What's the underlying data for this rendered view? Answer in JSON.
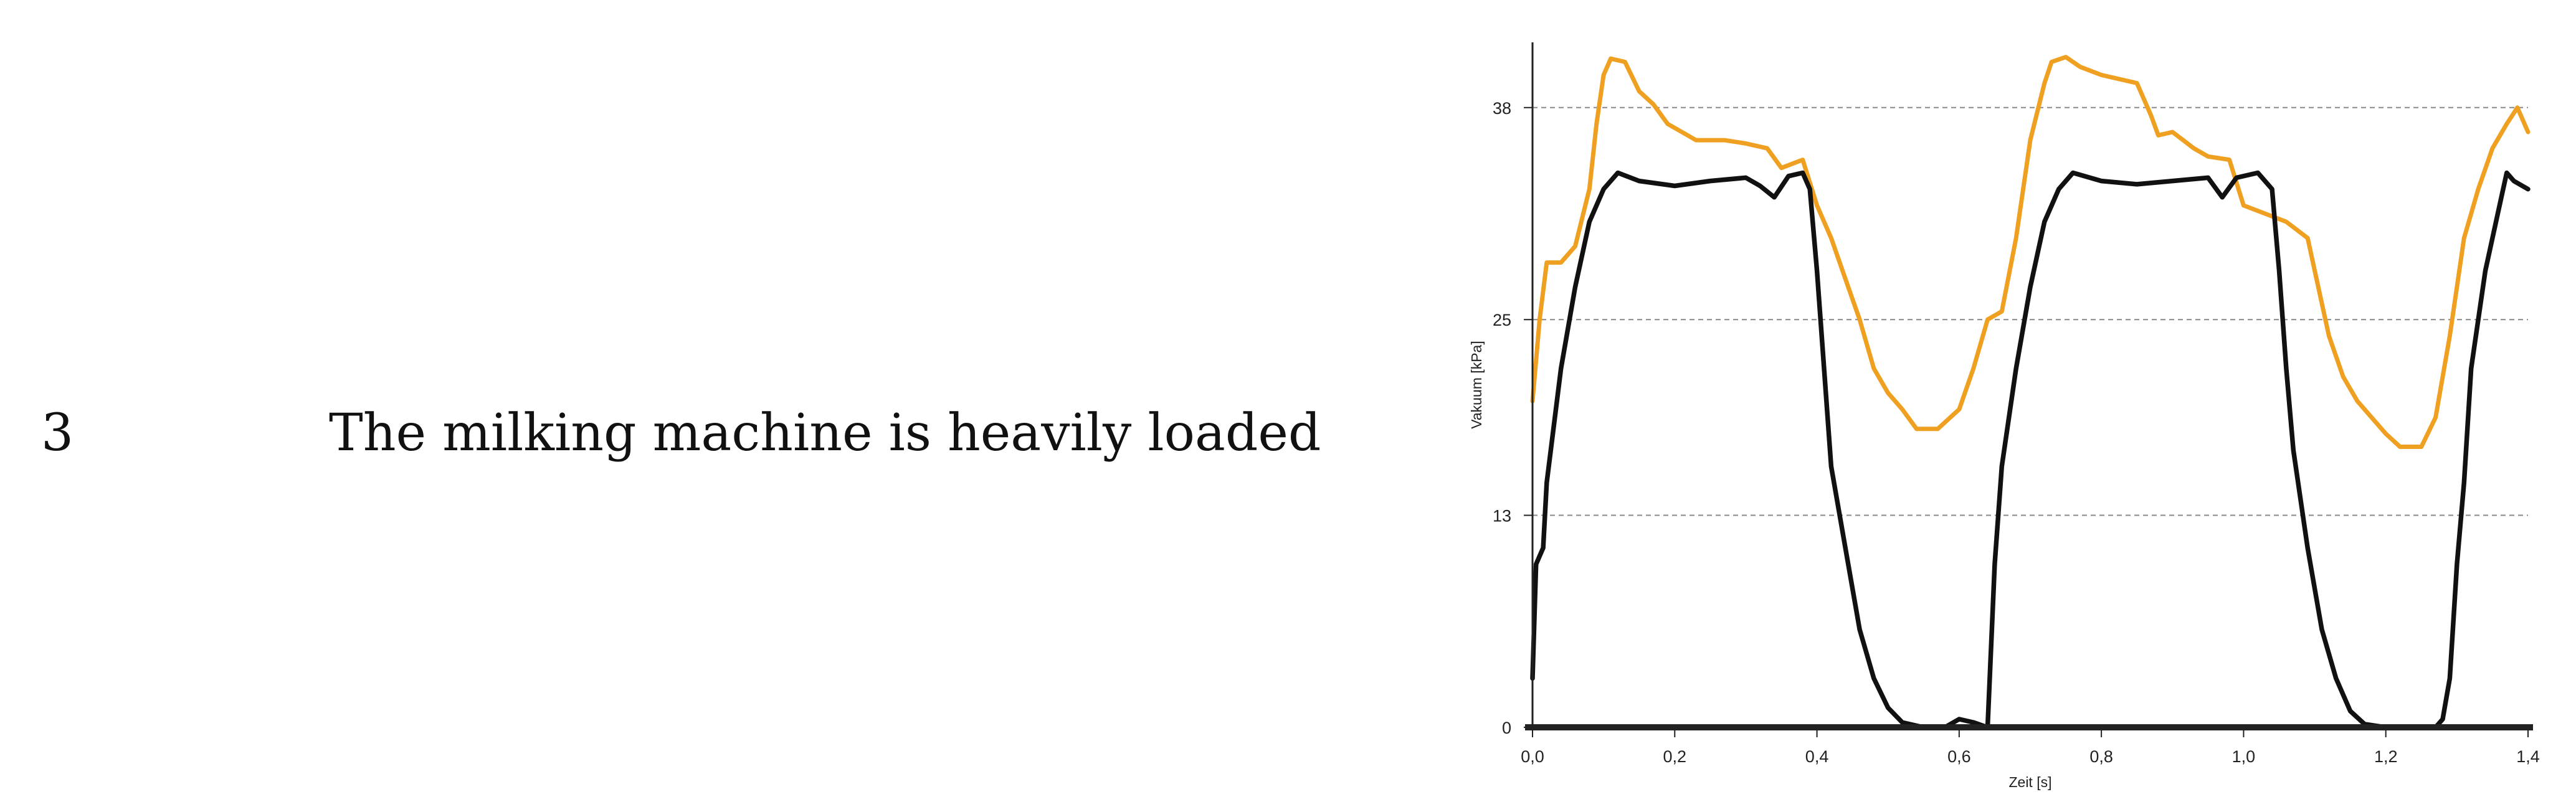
{
  "row": {
    "number": "3",
    "caption": "The milking machine is heavily loaded"
  },
  "colors": {
    "series_orange": "#f0a020",
    "series_black": "#111111",
    "grid": "#888888",
    "axis": "#222222"
  },
  "chart_data": {
    "type": "line",
    "xlabel": "Zeit [s]",
    "ylabel": "Vakuum [kPa]",
    "xlim": [
      0,
      1.4
    ],
    "ylim": [
      0,
      42
    ],
    "xticks": [
      0,
      0.2,
      0.4,
      0.6,
      0.8,
      1.0,
      1.2,
      1.4
    ],
    "xtick_labels": [
      "0,0",
      "0,2",
      "0,4",
      "0,6",
      "0,8",
      "1,0",
      "1,2",
      "1,4"
    ],
    "yticks": [
      0,
      13,
      25,
      38
    ],
    "ytick_labels": [
      "0",
      "13",
      "25",
      "38"
    ],
    "grid": "horizontal dashed",
    "series": [
      {
        "color": "#f0a020",
        "points": [
          [
            0.0,
            20
          ],
          [
            0.01,
            25
          ],
          [
            0.02,
            28.5
          ],
          [
            0.04,
            28.5
          ],
          [
            0.06,
            29.5
          ],
          [
            0.08,
            33
          ],
          [
            0.09,
            37
          ],
          [
            0.1,
            40
          ],
          [
            0.11,
            41
          ],
          [
            0.13,
            40.8
          ],
          [
            0.15,
            39
          ],
          [
            0.17,
            38.2
          ],
          [
            0.19,
            37
          ],
          [
            0.21,
            36.5
          ],
          [
            0.23,
            36
          ],
          [
            0.27,
            36
          ],
          [
            0.3,
            35.8
          ],
          [
            0.33,
            35.5
          ],
          [
            0.35,
            34.3
          ],
          [
            0.38,
            34.8
          ],
          [
            0.4,
            32
          ],
          [
            0.42,
            30
          ],
          [
            0.44,
            27.5
          ],
          [
            0.46,
            25
          ],
          [
            0.48,
            22
          ],
          [
            0.5,
            20.5
          ],
          [
            0.52,
            19.5
          ],
          [
            0.54,
            18.3
          ],
          [
            0.57,
            18.3
          ],
          [
            0.6,
            19.5
          ],
          [
            0.62,
            22
          ],
          [
            0.64,
            25
          ],
          [
            0.66,
            25.5
          ],
          [
            0.68,
            30
          ],
          [
            0.7,
            36
          ],
          [
            0.72,
            39.5
          ],
          [
            0.73,
            40.8
          ],
          [
            0.75,
            41.1
          ],
          [
            0.77,
            40.5
          ],
          [
            0.8,
            40
          ],
          [
            0.85,
            39.5
          ],
          [
            0.87,
            37.5
          ],
          [
            0.88,
            36.3
          ],
          [
            0.9,
            36.5
          ],
          [
            0.93,
            35.5
          ],
          [
            0.95,
            35
          ],
          [
            0.98,
            34.8
          ],
          [
            1.0,
            32
          ],
          [
            1.03,
            31.5
          ],
          [
            1.06,
            31
          ],
          [
            1.09,
            30
          ],
          [
            1.1,
            28
          ],
          [
            1.12,
            24
          ],
          [
            1.14,
            21.5
          ],
          [
            1.16,
            20
          ],
          [
            1.18,
            19
          ],
          [
            1.2,
            18
          ],
          [
            1.22,
            17.2
          ],
          [
            1.25,
            17.2
          ],
          [
            1.27,
            19
          ],
          [
            1.29,
            24
          ],
          [
            1.31,
            30
          ],
          [
            1.33,
            33
          ],
          [
            1.35,
            35.5
          ],
          [
            1.37,
            37
          ],
          [
            1.385,
            38
          ],
          [
            1.4,
            36.5
          ]
        ]
      },
      {
        "color": "#111111",
        "points": [
          [
            0.0,
            3
          ],
          [
            0.005,
            10
          ],
          [
            0.015,
            11
          ],
          [
            0.02,
            15
          ],
          [
            0.04,
            22
          ],
          [
            0.06,
            27
          ],
          [
            0.08,
            31
          ],
          [
            0.1,
            33
          ],
          [
            0.12,
            34
          ],
          [
            0.15,
            33.5
          ],
          [
            0.2,
            33.2
          ],
          [
            0.25,
            33.5
          ],
          [
            0.3,
            33.7
          ],
          [
            0.32,
            33.2
          ],
          [
            0.34,
            32.5
          ],
          [
            0.36,
            33.8
          ],
          [
            0.38,
            34
          ],
          [
            0.39,
            33
          ],
          [
            0.4,
            28
          ],
          [
            0.41,
            22
          ],
          [
            0.42,
            16
          ],
          [
            0.44,
            11
          ],
          [
            0.46,
            6
          ],
          [
            0.48,
            3
          ],
          [
            0.5,
            1.2
          ],
          [
            0.52,
            0.3
          ],
          [
            0.55,
            0
          ],
          [
            0.58,
            0
          ],
          [
            0.6,
            0.5
          ],
          [
            0.62,
            0.3
          ],
          [
            0.64,
            0
          ],
          [
            0.645,
            5
          ],
          [
            0.65,
            10
          ],
          [
            0.66,
            16
          ],
          [
            0.68,
            22
          ],
          [
            0.7,
            27
          ],
          [
            0.72,
            31
          ],
          [
            0.74,
            33
          ],
          [
            0.76,
            34
          ],
          [
            0.8,
            33.5
          ],
          [
            0.85,
            33.3
          ],
          [
            0.9,
            33.5
          ],
          [
            0.95,
            33.7
          ],
          [
            0.97,
            32.5
          ],
          [
            0.99,
            33.7
          ],
          [
            1.02,
            34
          ],
          [
            1.04,
            33
          ],
          [
            1.05,
            28
          ],
          [
            1.06,
            22
          ],
          [
            1.07,
            17
          ],
          [
            1.09,
            11
          ],
          [
            1.11,
            6
          ],
          [
            1.13,
            3
          ],
          [
            1.15,
            1
          ],
          [
            1.17,
            0.2
          ],
          [
            1.2,
            0
          ],
          [
            1.24,
            0
          ],
          [
            1.27,
            0
          ],
          [
            1.28,
            0.5
          ],
          [
            1.29,
            3
          ],
          [
            1.3,
            10
          ],
          [
            1.31,
            15
          ],
          [
            1.32,
            22
          ],
          [
            1.34,
            28
          ],
          [
            1.36,
            32
          ],
          [
            1.37,
            34
          ],
          [
            1.38,
            33.5
          ],
          [
            1.4,
            33
          ]
        ]
      }
    ]
  }
}
